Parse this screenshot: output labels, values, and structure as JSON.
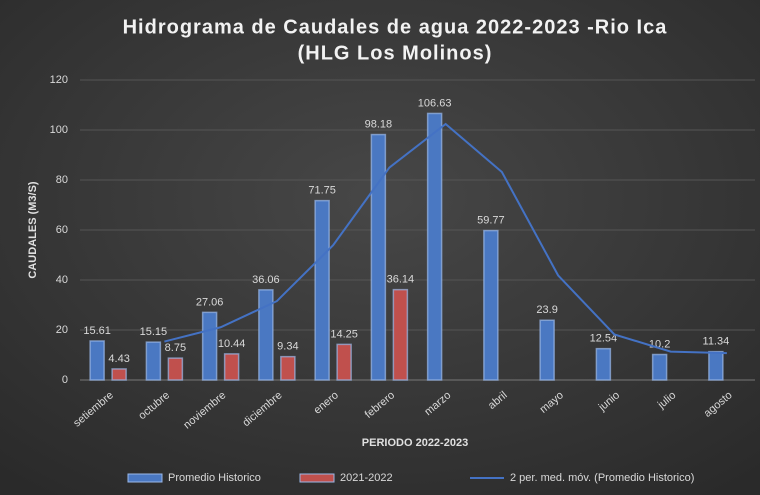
{
  "chart_data": {
    "type": "bar",
    "title": "Hidrograma de Caudales de agua 2022-2023 -Rio Ica",
    "subtitle": "(HLG Los Molinos)",
    "x_label": "PERIODO 2022-2023",
    "y_label": "CAUDALES (M3/S)",
    "categories": [
      "setiembre",
      "octubre",
      "noviembre",
      "diciembre",
      "enero",
      "febrero",
      "marzo",
      "abril",
      "mayo",
      "junio",
      "julio",
      "agosto"
    ],
    "series": [
      {
        "name": "Promedio Historico",
        "color": "#4a78c2",
        "type": "bar",
        "values": [
          15.61,
          15.15,
          27.06,
          36.06,
          71.75,
          98.18,
          106.63,
          59.77,
          23.9,
          12.54,
          10.2,
          11.34
        ]
      },
      {
        "name": "2021-2022",
        "color": "#c0504d",
        "type": "bar",
        "values": [
          4.43,
          8.75,
          10.44,
          9.34,
          14.25,
          36.14,
          null,
          null,
          null,
          null,
          null,
          null
        ]
      },
      {
        "name": "2 per. med. móv. (Promedio Historico)",
        "color": "#4472c4",
        "type": "line",
        "values": [
          null,
          15.38,
          21.1,
          31.56,
          53.9,
          84.97,
          102.4,
          83.2,
          41.84,
          18.22,
          11.37,
          10.77
        ]
      }
    ],
    "ylim": [
      0,
      120
    ],
    "yticks": [
      0,
      20,
      40,
      60,
      80,
      100,
      120
    ],
    "grid": true,
    "legend": "bottom"
  }
}
